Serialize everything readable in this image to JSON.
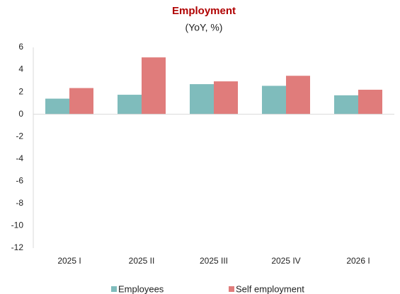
{
  "chart_data": {
    "type": "bar",
    "title": "Employment",
    "subtitle": "(YoY, %)",
    "categories": [
      "2025 I",
      "2025 II",
      "2025 III",
      "2025 IV",
      "2026 I"
    ],
    "series": [
      {
        "name": "Employees",
        "color": "#7fbcbc",
        "values": [
          1.4,
          1.75,
          2.7,
          2.55,
          1.7
        ]
      },
      {
        "name": "Self employment",
        "color": "#e07c7b",
        "values": [
          2.35,
          5.1,
          2.95,
          3.45,
          2.2
        ]
      }
    ],
    "ylim": [
      -12,
      6
    ],
    "yticks": [
      -12,
      -10,
      -8,
      -6,
      -4,
      -2,
      0,
      2,
      4,
      6
    ],
    "grid": false,
    "legend": "bottom"
  }
}
